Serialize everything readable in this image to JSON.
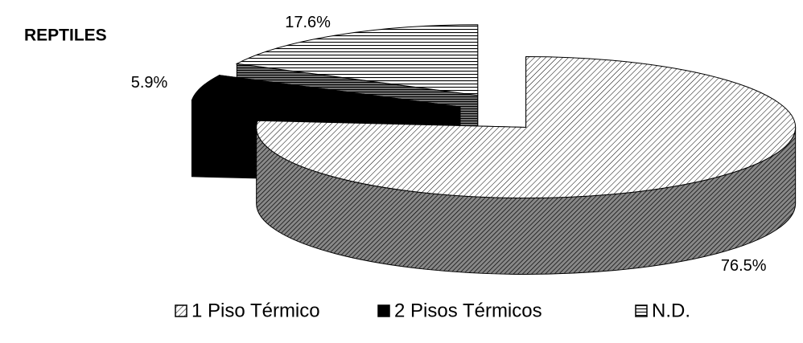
{
  "chart_data": {
    "type": "pie3d",
    "title": "REPTILES",
    "categories": [
      "1 Piso Térmico",
      "2 Pisos Térmicos",
      "N.D."
    ],
    "values": [
      76.5,
      5.9,
      17.6
    ],
    "value_labels": [
      "76.5%",
      "5.9%",
      "17.6%"
    ]
  }
}
